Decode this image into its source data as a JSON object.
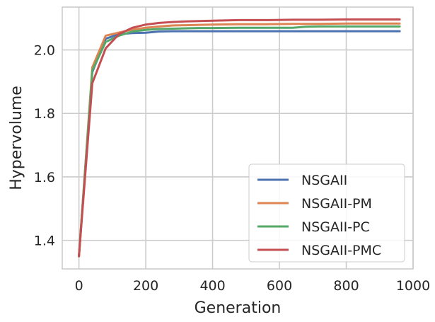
{
  "chart_data": {
    "type": "line",
    "title": "",
    "xlabel": "Generation",
    "ylabel": "Hypervolume",
    "xlim": [
      -50,
      1000
    ],
    "ylim": [
      1.31,
      2.135
    ],
    "xticks": [
      0,
      200,
      400,
      600,
      800,
      1000
    ],
    "yticks": [
      1.4,
      1.6,
      1.8,
      2.0
    ],
    "xtick_labels": [
      "0",
      "200",
      "400",
      "600",
      "800",
      "1000"
    ],
    "ytick_labels": [
      "1.4",
      "1.6",
      "1.8",
      "2.0"
    ],
    "grid": true,
    "legend_position": "lower-right",
    "series": [
      {
        "name": "NSGAII",
        "color": "#4c72b0",
        "x": [
          0,
          40,
          80,
          120,
          160,
          200,
          240,
          280,
          320,
          360,
          400,
          480,
          560,
          640,
          720,
          800,
          880,
          960
        ],
        "y": [
          1.35,
          1.93,
          2.035,
          2.05,
          2.053,
          2.054,
          2.058,
          2.059,
          2.059,
          2.059,
          2.059,
          2.059,
          2.059,
          2.059,
          2.059,
          2.059,
          2.059,
          2.059
        ]
      },
      {
        "name": "NSGAII-PM",
        "color": "#dd8452",
        "x": [
          0,
          40,
          80,
          120,
          160,
          200,
          240,
          280,
          320,
          360,
          400,
          480,
          560,
          640,
          720,
          800,
          880,
          960
        ],
        "y": [
          1.35,
          1.945,
          2.045,
          2.055,
          2.064,
          2.07,
          2.074,
          2.077,
          2.078,
          2.079,
          2.08,
          2.081,
          2.081,
          2.082,
          2.082,
          2.083,
          2.083,
          2.083
        ]
      },
      {
        "name": "NSGAII-PC",
        "color": "#55a868",
        "x": [
          0,
          40,
          80,
          120,
          160,
          200,
          240,
          280,
          320,
          360,
          400,
          480,
          560,
          640,
          680,
          720,
          800,
          880,
          960
        ],
        "y": [
          1.35,
          1.935,
          2.025,
          2.045,
          2.058,
          2.063,
          2.066,
          2.067,
          2.068,
          2.069,
          2.069,
          2.07,
          2.07,
          2.07,
          2.073,
          2.074,
          2.074,
          2.074,
          2.074
        ]
      },
      {
        "name": "NSGAII-PMC",
        "color": "#c44e52",
        "x": [
          0,
          40,
          80,
          120,
          160,
          200,
          240,
          280,
          320,
          360,
          400,
          480,
          560,
          640,
          720,
          800,
          880,
          960
        ],
        "y": [
          1.35,
          1.895,
          2.005,
          2.05,
          2.07,
          2.08,
          2.085,
          2.088,
          2.09,
          2.091,
          2.092,
          2.094,
          2.094,
          2.095,
          2.095,
          2.096,
          2.096,
          2.096
        ]
      }
    ]
  }
}
